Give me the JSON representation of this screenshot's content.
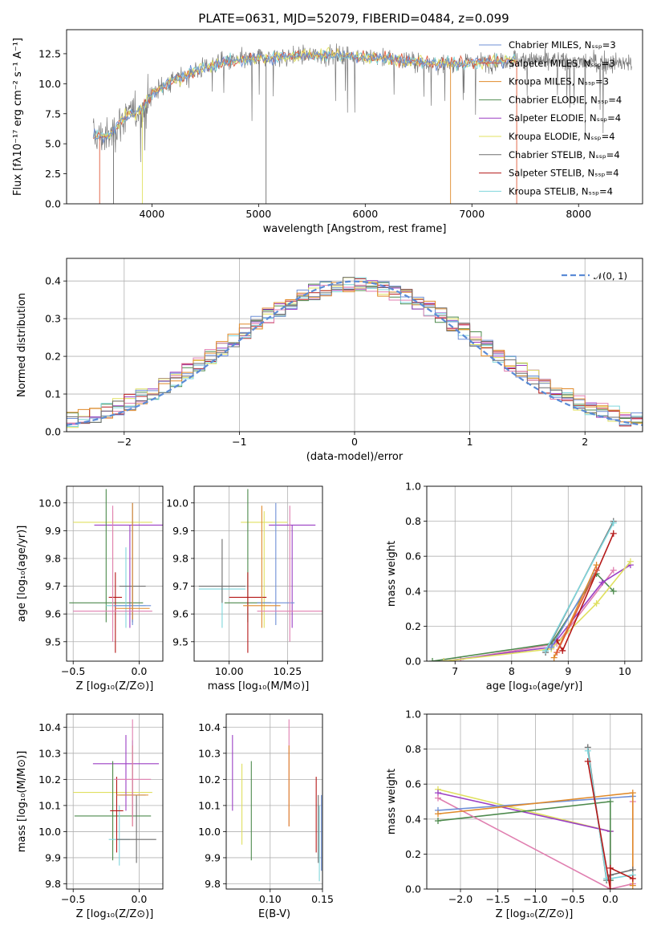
{
  "colors": {
    "Chabrier MILES": "#6f8fd6",
    "Salpeter MILES": "#e05a3a",
    "Kroupa MILES": "#e08a2a",
    "Chabrier ELODIE": "#4d8a4d",
    "Salpeter ELODIE": "#9b3fc4",
    "Kroupa ELODIE": "#e0e060",
    "Chabrier STELIB": "#6e6e6e",
    "Salpeter STELIB": "#b51818",
    "Kroupa STELIB": "#7fd6dc",
    "pink": "#e07fb0",
    "normal": "#5b8bd6"
  },
  "chart_data": [
    {
      "id": "spectrum",
      "type": "line",
      "title": "PLATE=0631, MJD=52079, FIBERID=0484, z=0.099",
      "xlabel": "wavelength [Angstrom, rest frame]",
      "ylabel": "Flux [fλ10⁻¹⁷ erg cm⁻² s⁻¹ A⁻¹]",
      "xlim": [
        3200,
        8600
      ],
      "ylim": [
        0,
        14.5
      ],
      "xticks": [
        4000,
        5000,
        6000,
        7000,
        8000
      ],
      "yticks": [
        0.0,
        2.5,
        5.0,
        7.5,
        10.0,
        12.5
      ],
      "legend_position": "right",
      "legend": [
        "Chabrier MILES, Nₛₛₚ=3",
        "Salpeter MILES, Nₛₛₚ=3",
        "Kroupa MILES, Nₛₛₚ=3",
        "Chabrier ELODIE, Nₛₛₚ=4",
        "Salpeter ELODIE, Nₛₛₚ=4",
        "Kroupa ELODIE, Nₛₛₚ=4",
        "Chabrier STELIB, Nₛₛₚ=4",
        "Salpeter STELIB, Nₛₛₚ=4",
        "Kroupa STELIB, Nₛₛₚ=4"
      ],
      "continuum": {
        "x": [
          3450,
          3600,
          3700,
          3800,
          3900,
          4000,
          4100,
          4200,
          4300,
          4400,
          4500,
          4700,
          4900,
          5100,
          5300,
          5500,
          5700,
          5900,
          6100,
          6300,
          6500,
          6700,
          6900,
          7100,
          7300,
          7400
        ],
        "y": [
          5.7,
          5.5,
          6.8,
          7.5,
          7.8,
          9.2,
          9.8,
          10.3,
          10.6,
          11.0,
          11.4,
          11.8,
          12.0,
          12.2,
          12.3,
          12.4,
          12.4,
          12.3,
          12.2,
          12.0,
          11.8,
          11.7,
          11.7,
          11.8,
          11.9,
          12.0
        ]
      },
      "data_range": [
        3450,
        8500
      ]
    },
    {
      "id": "residuals",
      "type": "bar",
      "xlabel": "(data-model)/error",
      "ylabel": "Normed distribution",
      "xlim": [
        -2.5,
        2.5
      ],
      "ylim": [
        0,
        0.46
      ],
      "xticks": [
        -2,
        -1,
        0,
        1,
        2
      ],
      "yticks": [
        0.0,
        0.1,
        0.2,
        0.3,
        0.4
      ],
      "bin_width": 0.1,
      "legend": [
        "𝒩(0, 1)"
      ],
      "legend_position": "top-right"
    },
    {
      "id": "age-vs-Z",
      "type": "scatter",
      "xlabel": "Z [log₁₀(Z/Z⊙)]",
      "ylabel": "age  [log₁₀(age/yr)]",
      "xlim": [
        -0.55,
        0.18
      ],
      "ylim": [
        9.43,
        10.06
      ],
      "xticks": [
        -0.5,
        0.0
      ],
      "yticks": [
        9.5,
        9.6,
        9.7,
        9.8,
        9.9,
        10.0
      ],
      "points": [
        {
          "series": "Kroupa ELODIE",
          "x": -0.2,
          "y": 9.93,
          "xerr": 0.3,
          "y_lo": 9.55,
          "y_hi": 9.97
        },
        {
          "series": "Salpeter ELODIE",
          "x": -0.07,
          "y": 9.92,
          "xerr": 0.27,
          "y_lo": 9.55,
          "y_hi": 9.92
        },
        {
          "series": "Chabrier ELODIE",
          "x": -0.25,
          "y": 9.64,
          "xerr": 0.28,
          "y_lo": 9.57,
          "y_hi": 10.05
        },
        {
          "series": "Kroupa STELIB",
          "x": -0.1,
          "y": 9.63,
          "xerr": 0.15,
          "y_lo": 9.55,
          "y_hi": 9.84
        },
        {
          "series": "Chabrier STELIB",
          "x": -0.05,
          "y": 9.7,
          "xerr": 0.1,
          "y_lo": 9.57,
          "y_hi": 9.7
        },
        {
          "series": "Salpeter STELIB",
          "x": -0.18,
          "y": 9.66,
          "xerr": 0.05,
          "y_lo": 9.46,
          "y_hi": 9.75
        },
        {
          "series": "Chabrier MILES",
          "x": -0.05,
          "y": 9.63,
          "xerr": 0.14,
          "y_lo": 9.56,
          "y_hi": 10.0
        },
        {
          "series": "Kroupa MILES",
          "x": -0.05,
          "y": 9.62,
          "xerr": 0.13,
          "y_lo": 9.58,
          "y_hi": 10.0
        },
        {
          "series": "pink",
          "x": -0.2,
          "y": 9.61,
          "xerr": 0.3,
          "y_lo": 9.5,
          "y_hi": 9.99
        }
      ]
    },
    {
      "id": "age-vs-mass",
      "type": "scatter",
      "xlabel": "mass [log₁₀(M/M⊙)]",
      "ylabel": "",
      "xlim": [
        9.85,
        10.4
      ],
      "ylim": [
        9.43,
        10.06
      ],
      "xticks": [
        10.0,
        10.25
      ],
      "yticks": [
        9.5,
        9.6,
        9.7,
        9.8,
        9.9,
        10.0
      ],
      "points": [
        {
          "series": "Kroupa ELODIE",
          "x": 10.15,
          "y": 9.93,
          "xerr": 0.1,
          "y_lo": 9.55,
          "y_hi": 9.97
        },
        {
          "series": "Salpeter ELODIE",
          "x": 10.27,
          "y": 9.92,
          "xerr": 0.1,
          "y_lo": 9.55,
          "y_hi": 9.92
        },
        {
          "series": "Chabrier ELODIE",
          "x": 10.08,
          "y": 9.64,
          "xerr": 0.1,
          "y_lo": 9.57,
          "y_hi": 10.05
        },
        {
          "series": "Kroupa STELIB",
          "x": 9.97,
          "y": 9.69,
          "xerr": 0.1,
          "y_lo": 9.55,
          "y_hi": 9.71
        },
        {
          "series": "Chabrier STELIB",
          "x": 9.97,
          "y": 9.7,
          "xerr": 0.1,
          "y_lo": 9.64,
          "y_hi": 9.87
        },
        {
          "series": "Salpeter STELIB",
          "x": 10.08,
          "y": 9.66,
          "xerr": 0.08,
          "y_lo": 9.46,
          "y_hi": 9.75
        },
        {
          "series": "Chabrier MILES",
          "x": 10.2,
          "y": 9.64,
          "xerr": 0.08,
          "y_lo": 9.56,
          "y_hi": 10.0
        },
        {
          "series": "Kroupa MILES",
          "x": 10.14,
          "y": 9.63,
          "xerr": 0.08,
          "y_lo": 9.55,
          "y_hi": 9.99
        },
        {
          "series": "pink",
          "x": 10.26,
          "y": 9.61,
          "xerr": 0.14,
          "y_lo": 9.5,
          "y_hi": 9.99
        }
      ]
    },
    {
      "id": "weight-vs-age",
      "type": "line",
      "xlabel": "age  [log₁₀(age/yr)]",
      "ylabel": "mass weight",
      "xlim": [
        6.5,
        10.3
      ],
      "ylim": [
        0,
        1.0
      ],
      "xticks": [
        7,
        8,
        9,
        10
      ],
      "yticks": [
        0.0,
        0.2,
        0.4,
        0.6,
        0.8,
        1.0
      ],
      "series": [
        {
          "series": "pink",
          "x": [
            6.8,
            7.1,
            8.8,
            9.8
          ],
          "y": [
            0.0,
            0.01,
            0.1,
            0.52
          ]
        },
        {
          "series": "Chabrier ELODIE",
          "x": [
            6.6,
            8.7,
            9.5,
            9.8
          ],
          "y": [
            0.0,
            0.1,
            0.5,
            0.4
          ]
        },
        {
          "series": "Salpeter ELODIE",
          "x": [
            6.8,
            8.7,
            9.6,
            10.1
          ],
          "y": [
            0.0,
            0.08,
            0.45,
            0.55
          ]
        },
        {
          "series": "Kroupa ELODIE",
          "x": [
            6.8,
            8.7,
            9.5,
            10.1
          ],
          "y": [
            0.0,
            0.07,
            0.33,
            0.57
          ]
        },
        {
          "series": "Chabrier STELIB",
          "x": [
            8.6,
            9.8
          ],
          "y": [
            0.05,
            0.8
          ]
        },
        {
          "series": "Kroupa STELIB",
          "x": [
            8.6,
            9.8
          ],
          "y": [
            0.06,
            0.79
          ]
        },
        {
          "series": "Salpeter STELIB",
          "x": [
            8.8,
            8.9,
            9.8
          ],
          "y": [
            0.12,
            0.06,
            0.73
          ]
        },
        {
          "series": "Chabrier MILES",
          "x": [
            8.7,
            9.5
          ],
          "y": [
            0.08,
            0.52
          ]
        },
        {
          "series": "Kroupa MILES",
          "x": [
            8.75,
            9.5
          ],
          "y": [
            0.02,
            0.55
          ]
        },
        {
          "series": "Salpeter MILES",
          "x": [
            8.8,
            9.5
          ],
          "y": [
            0.05,
            0.52
          ]
        }
      ]
    },
    {
      "id": "mass-vs-Z",
      "type": "scatter",
      "xlabel": "Z [log₁₀(Z/Z⊙)]",
      "ylabel": "mass [log₁₀(M/M⊙)]",
      "xlim": [
        -0.55,
        0.18
      ],
      "ylim": [
        9.78,
        10.45
      ],
      "xticks": [
        -0.5,
        0.0
      ],
      "yticks": [
        9.8,
        9.9,
        10.0,
        10.1,
        10.2,
        10.3,
        10.4
      ],
      "points": [
        {
          "series": "Kroupa ELODIE",
          "x": -0.2,
          "y": 10.15,
          "xerr": 0.3,
          "y_lo": 9.95,
          "y_hi": 10.26
        },
        {
          "series": "Salpeter ELODIE",
          "x": -0.1,
          "y": 10.26,
          "xerr": 0.25,
          "y_lo": 10.08,
          "y_hi": 10.37
        },
        {
          "series": "Chabrier ELODIE",
          "x": -0.2,
          "y": 10.06,
          "xerr": 0.29,
          "y_lo": 9.89,
          "y_hi": 10.27
        },
        {
          "series": "Kroupa STELIB",
          "x": -0.15,
          "y": 9.97,
          "xerr": 0.08,
          "y_lo": 9.87,
          "y_hi": 10.1
        },
        {
          "series": "Chabrier STELIB",
          "x": -0.02,
          "y": 9.97,
          "xerr": 0.15,
          "y_lo": 9.88,
          "y_hi": 10.14
        },
        {
          "series": "Salpeter STELIB",
          "x": -0.17,
          "y": 10.08,
          "xerr": 0.05,
          "y_lo": 9.92,
          "y_hi": 10.21
        },
        {
          "series": "Chabrier MILES",
          "x": -0.05,
          "y": 10.14,
          "xerr": 0.1,
          "y_lo": 10.05,
          "y_hi": 10.35
        },
        {
          "series": "Kroupa MILES",
          "x": -0.05,
          "y": 10.14,
          "xerr": 0.12,
          "y_lo": 10.02,
          "y_hi": 10.33
        },
        {
          "series": "pink",
          "x": -0.05,
          "y": 10.2,
          "xerr": 0.14,
          "y_lo": 10.02,
          "y_hi": 10.43
        }
      ]
    },
    {
      "id": "mass-vs-EBV",
      "type": "scatter",
      "xlabel": "E(B-V)",
      "ylabel": "",
      "xlim": [
        0.058,
        0.15
      ],
      "ylim": [
        9.78,
        10.45
      ],
      "xticks": [
        0.1,
        0.15
      ],
      "yticks": [
        9.8,
        9.9,
        10.0,
        10.1,
        10.2,
        10.3,
        10.4
      ],
      "points": [
        {
          "series": "Salpeter ELODIE",
          "x": 0.064,
          "y_lo": 10.08,
          "y_hi": 10.37
        },
        {
          "series": "Kroupa ELODIE",
          "x": 0.073,
          "y_lo": 9.95,
          "y_hi": 10.26
        },
        {
          "series": "Chabrier ELODIE",
          "x": 0.082,
          "y_lo": 9.89,
          "y_hi": 10.27
        },
        {
          "series": "pink",
          "x": 0.118,
          "y_lo": 10.02,
          "y_hi": 10.43
        },
        {
          "series": "Kroupa MILES",
          "x": 0.118,
          "y_lo": 10.02,
          "y_hi": 10.33
        },
        {
          "series": "Salpeter STELIB",
          "x": 0.144,
          "y_lo": 9.92,
          "y_hi": 10.21
        },
        {
          "series": "Chabrier STELIB",
          "x": 0.146,
          "y_lo": 9.88,
          "y_hi": 10.14
        },
        {
          "series": "Kroupa STELIB",
          "x": 0.147,
          "y_lo": 9.81,
          "y_hi": 10.1
        },
        {
          "series": "Chabrier MILES",
          "x": 0.149,
          "y_lo": 9.85,
          "y_hi": 10.14
        }
      ]
    },
    {
      "id": "weight-vs-Z",
      "type": "line",
      "xlabel": "Z [log₁₀(Z/Z⊙)]",
      "ylabel": "mass weight",
      "xlim": [
        -2.45,
        0.42
      ],
      "ylim": [
        0,
        1.0
      ],
      "xticks": [
        -2.0,
        -1.5,
        -1.0,
        -0.5,
        0.0
      ],
      "yticks": [
        0.0,
        0.2,
        0.4,
        0.6,
        0.8,
        1.0
      ],
      "series": [
        {
          "series": "Kroupa ELODIE",
          "x": [
            -2.3,
            0.0,
            0.0
          ],
          "y": [
            0.57,
            0.33,
            0.0
          ]
        },
        {
          "series": "Salpeter ELODIE",
          "x": [
            -2.3,
            0.0,
            0.0
          ],
          "y": [
            0.55,
            0.33,
            0.05
          ]
        },
        {
          "series": "Chabrier ELODIE",
          "x": [
            -2.3,
            0.0,
            0.0
          ],
          "y": [
            0.39,
            0.5,
            0.05
          ]
        },
        {
          "series": "pink",
          "x": [
            -2.3,
            0.0,
            0.3,
            0.3
          ],
          "y": [
            0.52,
            0.0,
            0.03,
            0.5
          ]
        },
        {
          "series": "Chabrier MILES",
          "x": [
            -2.3,
            0.3
          ],
          "y": [
            0.45,
            0.53
          ]
        },
        {
          "series": "Kroupa MILES",
          "x": [
            -2.3,
            0.3,
            0.3
          ],
          "y": [
            0.43,
            0.55,
            0.02
          ]
        },
        {
          "series": "Chabrier STELIB",
          "x": [
            -0.3,
            -0.05,
            0.0,
            0.3
          ],
          "y": [
            0.81,
            0.05,
            0.08,
            0.11
          ]
        },
        {
          "series": "Kroupa STELIB",
          "x": [
            -0.3,
            -0.05,
            0.0,
            0.3
          ],
          "y": [
            0.79,
            0.06,
            0.06,
            0.08
          ]
        },
        {
          "series": "Salpeter STELIB",
          "x": [
            -0.3,
            0.0,
            0.0,
            0.3
          ],
          "y": [
            0.73,
            0.0,
            0.12,
            0.06
          ]
        }
      ]
    }
  ]
}
